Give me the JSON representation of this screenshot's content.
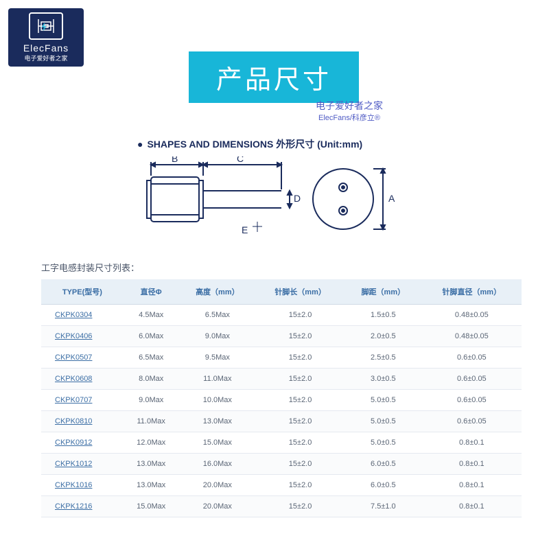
{
  "logo": {
    "brand": "ElecFans",
    "subtitle": "电子爱好者之家"
  },
  "title_banner": "产品尺寸",
  "watermark": {
    "line1": "电子爱好者之家",
    "line2": "ElecFans/科彦立®"
  },
  "diagram_title": "SHAPES AND DIMENSIONS 外形尺寸 (Unit:mm)",
  "diagram": {
    "labels": {
      "A": "A",
      "B": "B",
      "C": "C",
      "D": "D",
      "E": "E"
    },
    "stroke": "#1a2b5c",
    "stroke_width": 2
  },
  "table_label": "工字电感封装尺寸列表：",
  "table": {
    "header_bg": "#e8f0f7",
    "header_color": "#3b6ea5",
    "row_color": "#5a6575",
    "link_color": "#3b6ea5",
    "columns": [
      "TYPE(型号)",
      "直径Φ",
      "高度（mm）",
      "针脚长（mm）",
      "脚距（mm）",
      "针脚直径（mm）"
    ],
    "rows": [
      [
        "CKPK0304",
        "4.5Max",
        "6.5Max",
        "15±2.0",
        "1.5±0.5",
        "0.48±0.05"
      ],
      [
        "CKPK0406",
        "6.0Max",
        "9.0Max",
        "15±2.0",
        "2.0±0.5",
        "0.48±0.05"
      ],
      [
        "CKPK0507",
        "6.5Max",
        "9.5Max",
        "15±2.0",
        "2.5±0.5",
        "0.6±0.05"
      ],
      [
        "CKPK0608",
        "8.0Max",
        "11.0Max",
        "15±2.0",
        "3.0±0.5",
        "0.6±0.05"
      ],
      [
        "CKPK0707",
        "9.0Max",
        "10.0Max",
        "15±2.0",
        "5.0±0.5",
        "0.6±0.05"
      ],
      [
        "CKPK0810",
        "11.0Max",
        "13.0Max",
        "15±2.0",
        "5.0±0.5",
        "0.6±0.05"
      ],
      [
        "CKPK0912",
        "12.0Max",
        "15.0Max",
        "15±2.0",
        "5.0±0.5",
        "0.8±0.1"
      ],
      [
        "CKPK1012",
        "13.0Max",
        "16.0Max",
        "15±2.0",
        "6.0±0.5",
        "0.8±0.1"
      ],
      [
        "CKPK1016",
        "13.0Max",
        "20.0Max",
        "15±2.0",
        "6.0±0.5",
        "0.8±0.1"
      ],
      [
        "CKPK1216",
        "15.0Max",
        "20.0Max",
        "15±2.0",
        "7.5±1.0",
        "0.8±0.1"
      ]
    ]
  }
}
